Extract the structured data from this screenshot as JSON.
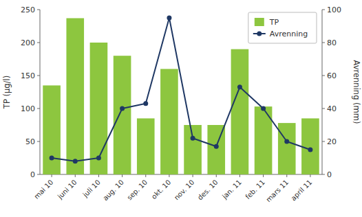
{
  "chart_data": {
    "type": "bar",
    "categories": [
      "mai 10",
      "juni 10",
      "juli 10",
      "aug. 10",
      "sep. 10",
      "okt. 10",
      "nov. 10",
      "des. 10",
      "jan. 11",
      "feb. 11",
      "mars 11",
      "april 11"
    ],
    "series": [
      {
        "name": "TP",
        "type": "bar",
        "color": "#8DC63F",
        "values": [
          135,
          237,
          200,
          180,
          85,
          160,
          75,
          75,
          190,
          103,
          78,
          85
        ]
      },
      {
        "name": "Avrenning",
        "type": "line",
        "axis": "y2",
        "color": "#1F3864",
        "marker": "circle",
        "values": [
          10,
          8,
          10,
          40,
          43,
          95,
          22,
          17,
          53,
          40,
          20,
          15
        ]
      }
    ],
    "ylabel": "TP (µg/l)",
    "y2label": "Avrenning (mm)",
    "ylim": [
      0,
      250
    ],
    "yticks": [
      0,
      50,
      100,
      150,
      200,
      250
    ],
    "y2lim": [
      0,
      100
    ],
    "y2ticks": [
      0,
      20,
      40,
      60,
      80,
      100
    ],
    "legend": "upper right"
  }
}
